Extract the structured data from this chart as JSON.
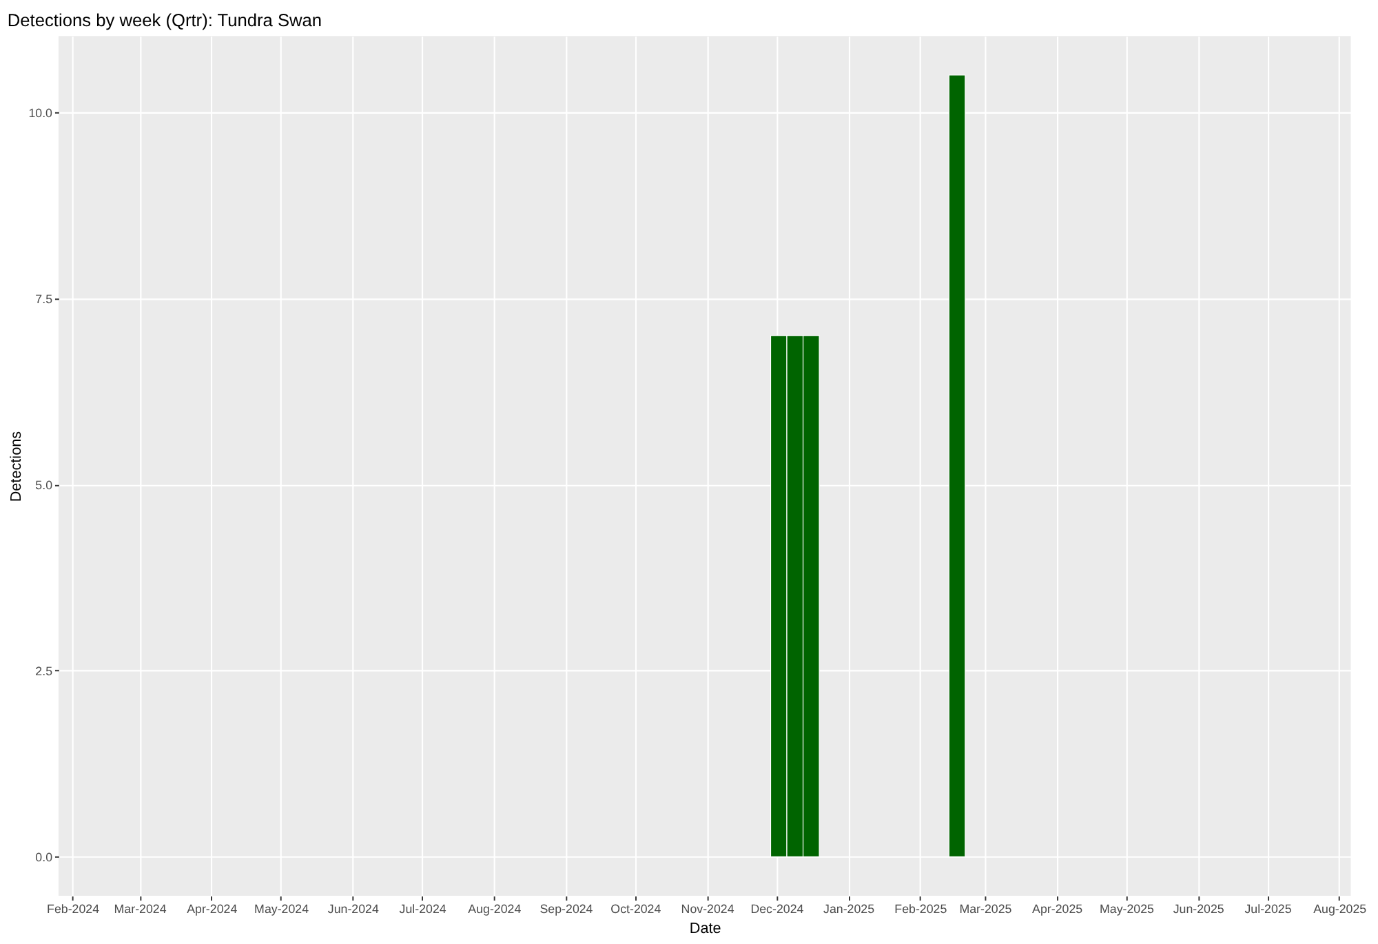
{
  "chart_data": {
    "type": "bar",
    "title": "Detections by week (Qrtr): Tundra Swan",
    "xlabel": "Date",
    "ylabel": "Detections",
    "x": [
      "2024-12-02",
      "2024-12-09",
      "2024-12-16",
      "2025-02-17"
    ],
    "series": [
      {
        "color": "#006400",
        "values": [
          7,
          7,
          7,
          10.5
        ]
      }
    ],
    "xlim": [
      "2024-01-26",
      "2025-08-06"
    ],
    "xticks": [
      {
        "value": "2024-02-01",
        "label": "Feb-2024"
      },
      {
        "value": "2024-03-01",
        "label": "Mar-2024"
      },
      {
        "value": "2024-04-01",
        "label": "Apr-2024"
      },
      {
        "value": "2024-05-01",
        "label": "May-2024"
      },
      {
        "value": "2024-06-01",
        "label": "Jun-2024"
      },
      {
        "value": "2024-07-01",
        "label": "Jul-2024"
      },
      {
        "value": "2024-08-01",
        "label": "Aug-2024"
      },
      {
        "value": "2024-09-01",
        "label": "Sep-2024"
      },
      {
        "value": "2024-10-01",
        "label": "Oct-2024"
      },
      {
        "value": "2024-11-01",
        "label": "Nov-2024"
      },
      {
        "value": "2024-12-01",
        "label": "Dec-2024"
      },
      {
        "value": "2025-01-01",
        "label": "Jan-2025"
      },
      {
        "value": "2025-02-01",
        "label": "Feb-2025"
      },
      {
        "value": "2025-03-01",
        "label": "Mar-2025"
      },
      {
        "value": "2025-04-01",
        "label": "Apr-2025"
      },
      {
        "value": "2025-05-01",
        "label": "May-2025"
      },
      {
        "value": "2025-06-01",
        "label": "Jun-2025"
      },
      {
        "value": "2025-07-01",
        "label": "Jul-2025"
      },
      {
        "value": "2025-08-01",
        "label": "Aug-2025"
      }
    ],
    "ylim": [
      -0.525,
      11.025
    ],
    "yticks": [
      {
        "value": 0,
        "label": "0.0"
      },
      {
        "value": 2.5,
        "label": "2.5"
      },
      {
        "value": 5,
        "label": "5.0"
      },
      {
        "value": 7.5,
        "label": "7.5"
      },
      {
        "value": 10,
        "label": "10.0"
      }
    ],
    "grid": true
  }
}
